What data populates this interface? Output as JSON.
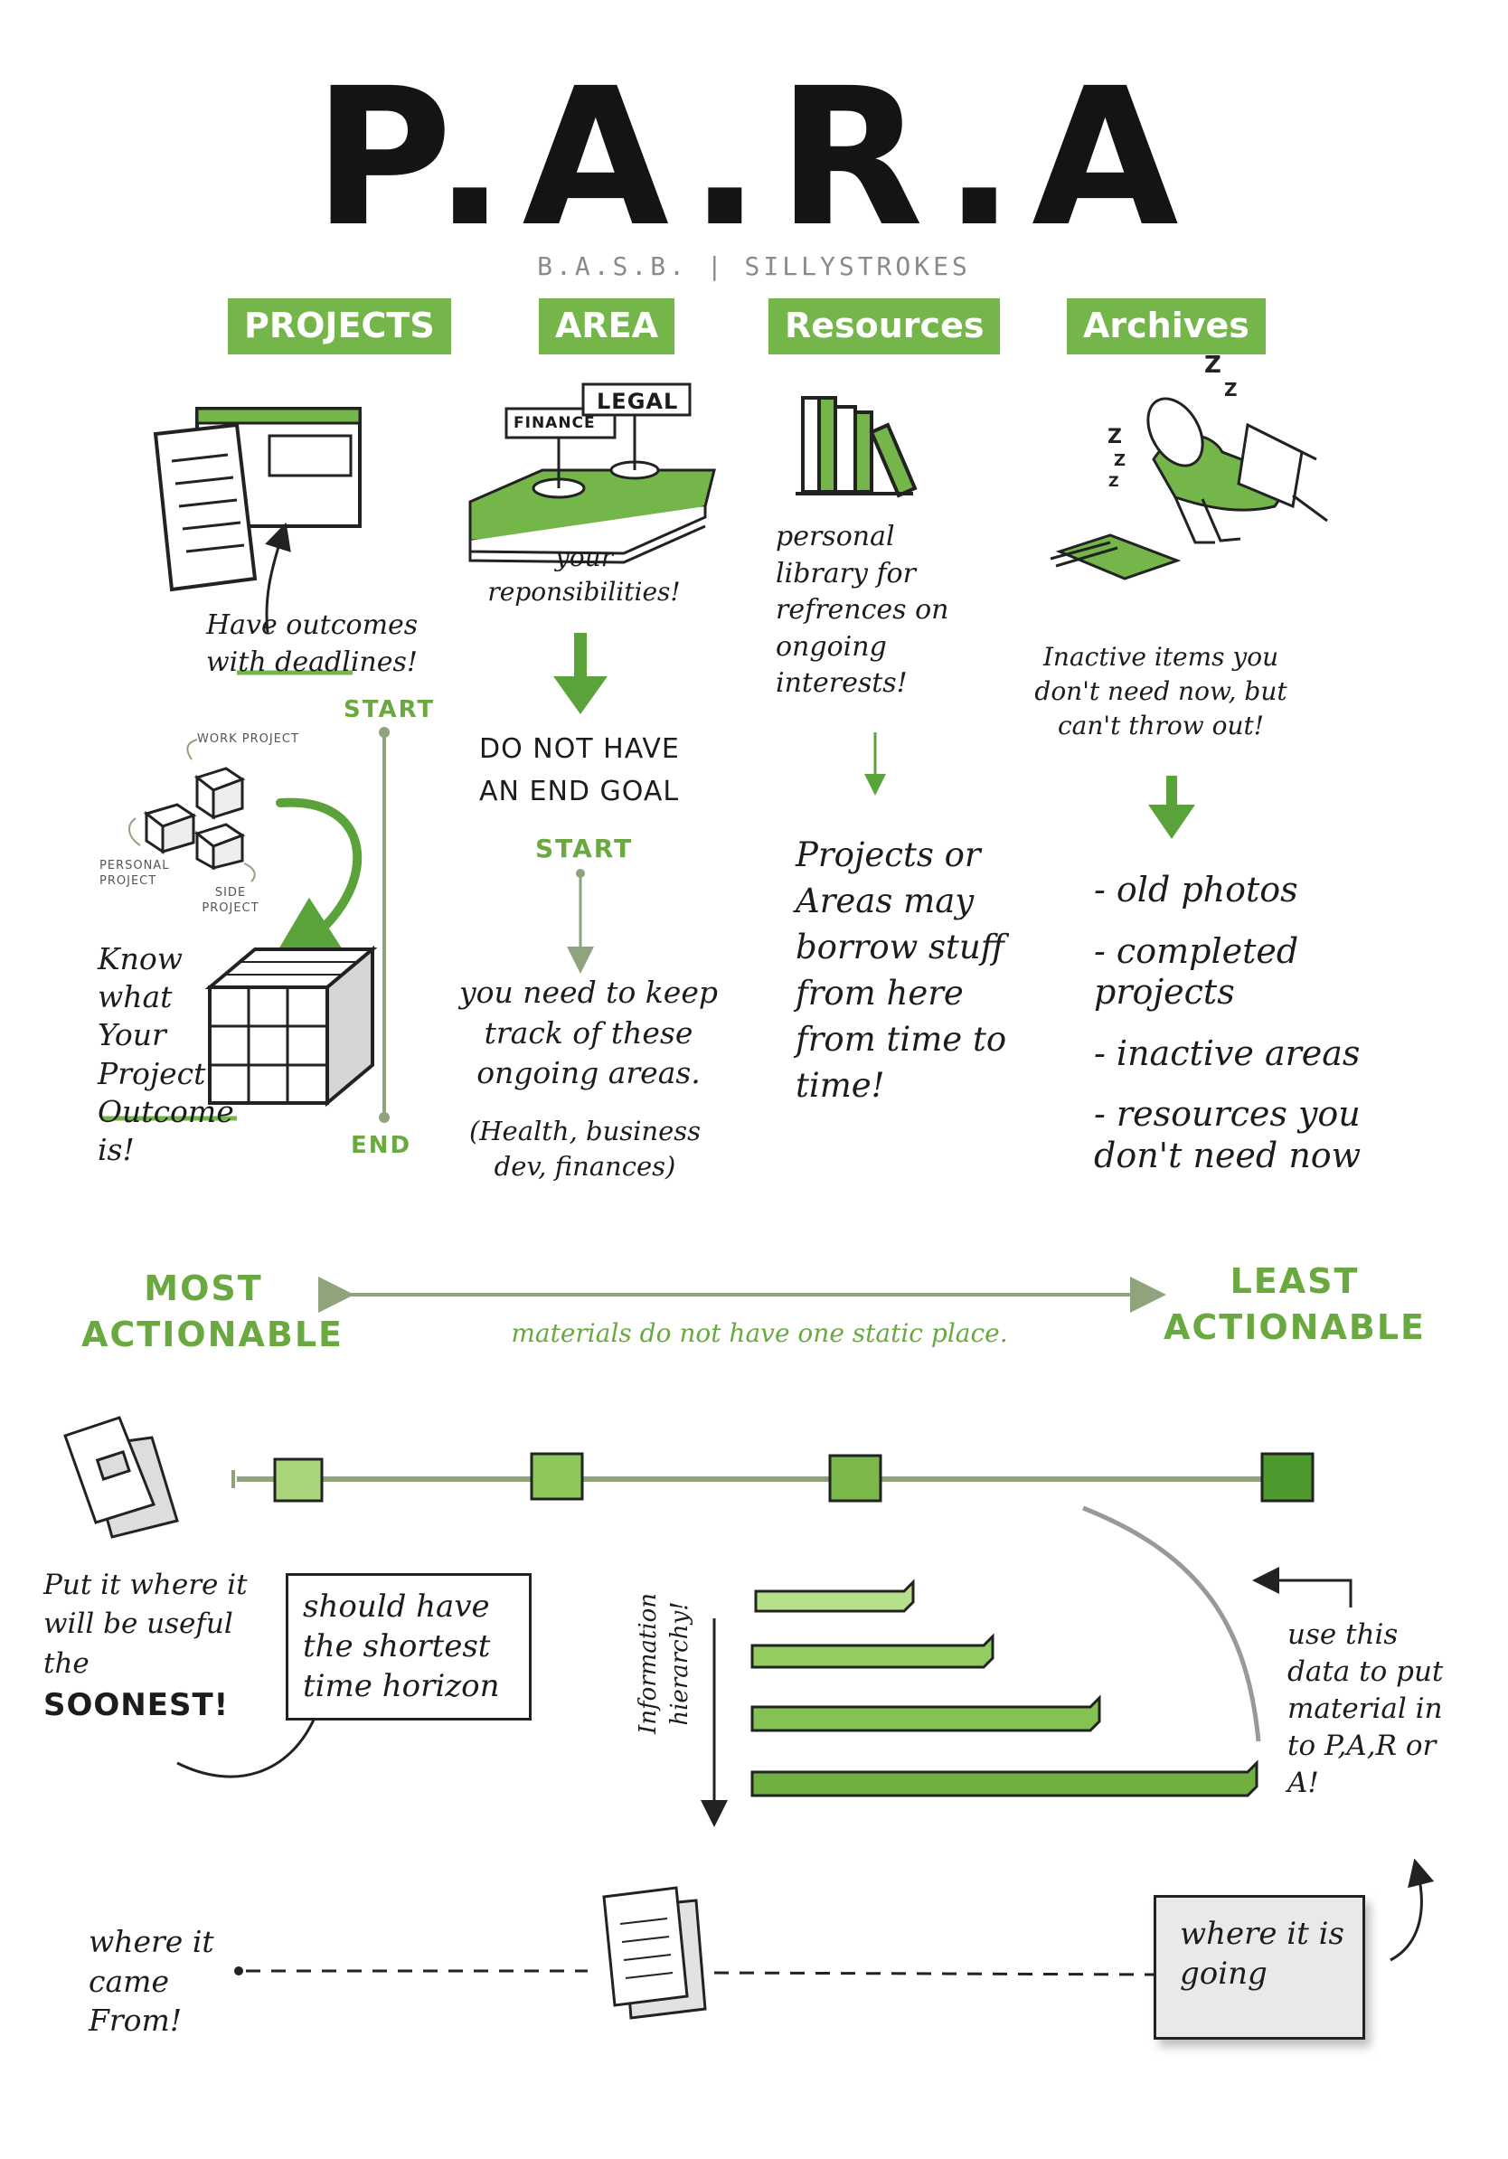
{
  "title": "P.A.R.A",
  "subtitle": "B.A.S.B. | SILLYSTROKES",
  "columns": {
    "projects": {
      "label": "PROJECTS",
      "note": "Have outcomes with deadlines!",
      "start_label": "START",
      "end_label": "END",
      "cube_labels": [
        "WORK PROJECT",
        "PERSONAL PROJECT",
        "SIDE PROJECT"
      ],
      "outcome_note": "Know what Your Project Outcome is!"
    },
    "area": {
      "label": "AREA",
      "sign_finance": "FINANCE",
      "sign_legal": "LEGAL",
      "note": "your reponsibilities!",
      "goal_note": "DO NOT HAVE AN END GOAL",
      "start_label": "START",
      "track_note": "you need to keep track of these ongoing areas.",
      "examples": "(Health, business dev, finances)"
    },
    "resources": {
      "label": "Resources",
      "note": "personal library for refrences on ongoing interests!",
      "borrow_note": "Projects or Areas may borrow stuff from here from time to time!"
    },
    "archives": {
      "label": "Archives",
      "sleep_z": "Z Z",
      "note": "Inactive items you don't need now, but can't throw out!",
      "items": [
        "- old photos",
        "- completed projects",
        "- inactive areas",
        "- resources you don't need now"
      ]
    }
  },
  "spectrum": {
    "left": "MOST ACTIONABLE",
    "right": "LEAST ACTIONABLE",
    "middle": "materials do not have one static place."
  },
  "bottom": {
    "put_note": "Put it where it will be useful the",
    "put_emphasis": "SOONEST!",
    "horizon_note": "should have the shortest time horizon",
    "hierarchy_label": "Information hierarchy!",
    "use_note": "use this data to put material in to P,A,R or A!",
    "came_from": "where it came From!",
    "going": "where it is going"
  },
  "colors": {
    "brand_green": "#74b64a",
    "dark_green": "#4e9a2e",
    "sage": "#8fa47c"
  }
}
